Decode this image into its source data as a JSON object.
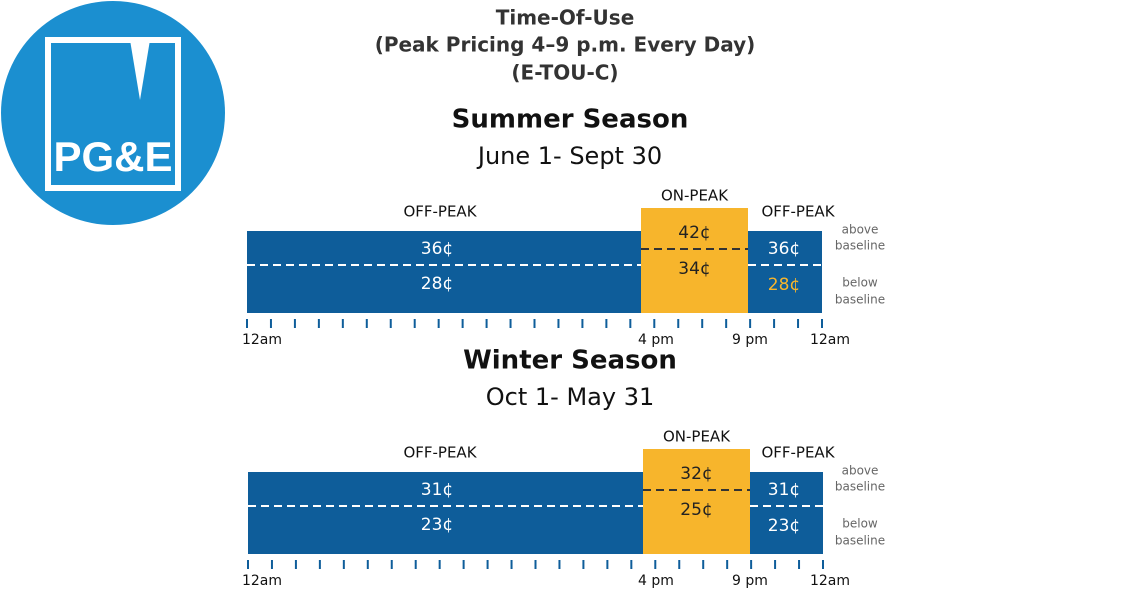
{
  "logo": {
    "text": "PG&E"
  },
  "header": {
    "lines": [
      "Time-Of-Use",
      "(Peak Pricing 4–9 p.m. Every Day)",
      "(E-TOU-C)"
    ]
  },
  "seasons": [
    {
      "title": "Summer Season",
      "dates": "June 1- Sept 30",
      "periods": [
        "OFF-PEAK",
        "ON-PEAK",
        "OFF-PEAK"
      ],
      "rates": [
        [
          "36¢",
          "28¢"
        ],
        [
          "42¢",
          "34¢"
        ],
        [
          "36¢",
          "28¢"
        ]
      ],
      "side_labels": [
        [
          "above",
          "baseline"
        ],
        [
          "below",
          "baseline"
        ]
      ],
      "tick_labels": [
        "12am",
        "4 pm",
        "9 pm",
        "12am"
      ]
    },
    {
      "title": "Winter Season",
      "dates": "Oct 1- May 31",
      "periods": [
        "OFF-PEAK",
        "ON-PEAK",
        "OFF-PEAK"
      ],
      "rates": [
        [
          "31¢",
          "23¢"
        ],
        [
          "32¢",
          "25¢"
        ],
        [
          "31¢",
          "23¢"
        ]
      ],
      "side_labels": [
        [
          "above",
          "baseline"
        ],
        [
          "below",
          "baseline"
        ]
      ],
      "tick_labels": [
        "12am",
        "4 pm",
        "9 pm",
        "12am"
      ]
    }
  ]
}
